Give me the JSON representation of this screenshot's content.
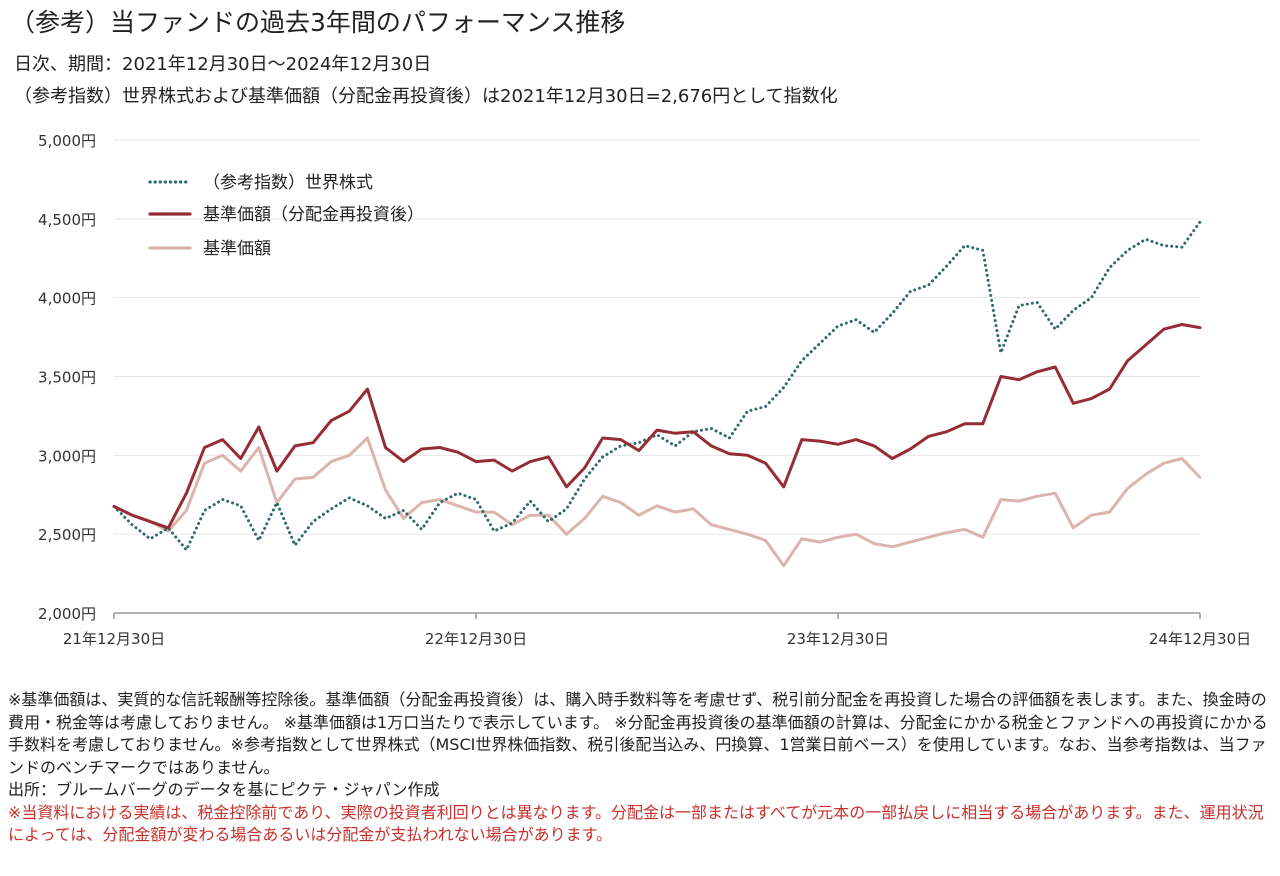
{
  "header": {
    "title": "（参考）当ファンドの過去3年間のパフォーマンス推移",
    "period": "日次、期間：2021年12月30日～2024年12月30日",
    "index_note": "（参考指数）世界株式および基準価額（分配金再投資後）は2021年12月30日=2,676円として指数化"
  },
  "colors": {
    "world": "#2f6b6b",
    "reinvested": "#962c35",
    "nav": "#dbb4ad",
    "axis": "#999999"
  },
  "chart_data": {
    "type": "line",
    "x_ticks": [
      "21年12月30日",
      "22年12月30日",
      "23年12月30日",
      "24年12月30日"
    ],
    "y_tick_labels": [
      "5,000円",
      "4,500円",
      "4,000円",
      "3,500円",
      "3,000円",
      "2,500円",
      "2,000円"
    ],
    "ylim": [
      2000,
      5000
    ],
    "xlim": [
      0,
      36
    ],
    "grid": true,
    "legend_position": "top-left",
    "series": [
      {
        "name": "（参考指数）世界株式",
        "style": "dotted",
        "x": [
          0,
          0.6,
          1.2,
          1.8,
          2.4,
          3,
          3.6,
          4.2,
          4.8,
          5.4,
          6,
          6.6,
          7.2,
          7.8,
          8.4,
          9,
          9.6,
          10.2,
          10.8,
          11.4,
          12,
          12.6,
          13.2,
          13.8,
          14.4,
          15,
          15.6,
          16.2,
          16.8,
          17.4,
          18,
          18.6,
          19.2,
          19.8,
          20.4,
          21,
          21.6,
          22.2,
          22.8,
          23.4,
          24,
          24.6,
          25.2,
          25.8,
          26.4,
          27,
          27.6,
          28.2,
          28.8,
          29.4,
          30,
          30.6,
          31.2,
          31.8,
          32.4,
          33,
          33.6,
          34.2,
          34.8,
          35.4,
          36
        ],
        "values": [
          2676,
          2560,
          2470,
          2540,
          2400,
          2650,
          2720,
          2680,
          2460,
          2700,
          2430,
          2580,
          2660,
          2730,
          2680,
          2600,
          2650,
          2530,
          2700,
          2760,
          2720,
          2520,
          2570,
          2710,
          2580,
          2660,
          2850,
          2990,
          3060,
          3080,
          3130,
          3060,
          3150,
          3170,
          3110,
          3280,
          3310,
          3430,
          3600,
          3710,
          3820,
          3860,
          3780,
          3900,
          4040,
          4080,
          4200,
          4330,
          4300,
          3650,
          3950,
          3970,
          3800,
          3920,
          4000,
          4190,
          4300,
          4370,
          4330,
          4320,
          4480
        ]
      },
      {
        "name": "基準価額（分配金再投資後）",
        "style": "solid",
        "x": [
          0,
          0.6,
          1.2,
          1.8,
          2.4,
          3,
          3.6,
          4.2,
          4.8,
          5.4,
          6,
          6.6,
          7.2,
          7.8,
          8.4,
          9,
          9.6,
          10.2,
          10.8,
          11.4,
          12,
          12.6,
          13.2,
          13.8,
          14.4,
          15,
          15.6,
          16.2,
          16.8,
          17.4,
          18,
          18.6,
          19.2,
          19.8,
          20.4,
          21,
          21.6,
          22.2,
          22.8,
          23.4,
          24,
          24.6,
          25.2,
          25.8,
          26.4,
          27,
          27.6,
          28.2,
          28.8,
          29.4,
          30,
          30.6,
          31.2,
          31.8,
          32.4,
          33,
          33.6,
          34.2,
          34.8,
          35.4,
          36
        ],
        "values": [
          2676,
          2620,
          2580,
          2540,
          2760,
          3050,
          3100,
          2980,
          3180,
          2900,
          3060,
          3080,
          3220,
          3280,
          3420,
          3050,
          2960,
          3040,
          3050,
          3020,
          2960,
          2970,
          2900,
          2960,
          2990,
          2800,
          2920,
          3110,
          3100,
          3030,
          3160,
          3140,
          3150,
          3060,
          3010,
          3000,
          2950,
          2800,
          3100,
          3090,
          3070,
          3100,
          3060,
          2980,
          3040,
          3120,
          3150,
          3200,
          3200,
          3500,
          3480,
          3530,
          3560,
          3330,
          3360,
          3420,
          3600,
          3700,
          3800,
          3830,
          3810
        ]
      },
      {
        "name": "基準価額",
        "style": "solid",
        "x": [
          0,
          0.6,
          1.2,
          1.8,
          2.4,
          3,
          3.6,
          4.2,
          4.8,
          5.4,
          6,
          6.6,
          7.2,
          7.8,
          8.4,
          9,
          9.6,
          10.2,
          10.8,
          11.4,
          12,
          12.6,
          13.2,
          13.8,
          14.4,
          15,
          15.6,
          16.2,
          16.8,
          17.4,
          18,
          18.6,
          19.2,
          19.8,
          20.4,
          21,
          21.6,
          22.2,
          22.8,
          23.4,
          24,
          24.6,
          25.2,
          25.8,
          26.4,
          27,
          27.6,
          28.2,
          28.8,
          29.4,
          30,
          30.6,
          31.2,
          31.8,
          32.4,
          33,
          33.6,
          34.2,
          34.8,
          35.4,
          36
        ],
        "values": [
          2676,
          2620,
          2580,
          2520,
          2650,
          2950,
          3000,
          2900,
          3050,
          2700,
          2850,
          2860,
          2960,
          3000,
          3110,
          2780,
          2600,
          2700,
          2720,
          2680,
          2640,
          2640,
          2560,
          2620,
          2620,
          2500,
          2600,
          2740,
          2700,
          2620,
          2680,
          2640,
          2660,
          2560,
          2530,
          2500,
          2460,
          2300,
          2470,
          2450,
          2480,
          2500,
          2440,
          2420,
          2450,
          2480,
          2510,
          2530,
          2480,
          2720,
          2710,
          2740,
          2760,
          2540,
          2620,
          2640,
          2790,
          2880,
          2950,
          2980,
          2860
        ]
      }
    ]
  },
  "notes": {
    "para1": "※基準価額は、実質的な信託報酬等控除後。基準価額（分配金再投資後）は、購入時手数料等を考慮せず、税引前分配金を再投資した場合の評価額を表します。また、換金時の費用・税金等は考慮しておりません。 ※基準価額は1万口当たりで表示しています。 ※分配金再投資後の基準価額の計算は、分配金にかかる税金とファンドへの再投資にかかる手数料を考慮しておりません。※参考指数として世界株式（MSCI世界株価指数、税引後配当込み、円換算、1営業日前ベース）を使用しています。なお、当参考指数は、当ファンドのベンチマークではありません。",
    "source": "出所：ブルームバーグのデータを基にピクテ・ジャパン作成",
    "warning": "※当資料における実績は、税金控除前であり、実際の投資者利回りとは異なります。分配金は一部またはすべてが元本の一部払戻しに相当する場合があります。また、運用状況によっては、分配金額が変わる場合あるいは分配金が支払われない場合があります。"
  }
}
